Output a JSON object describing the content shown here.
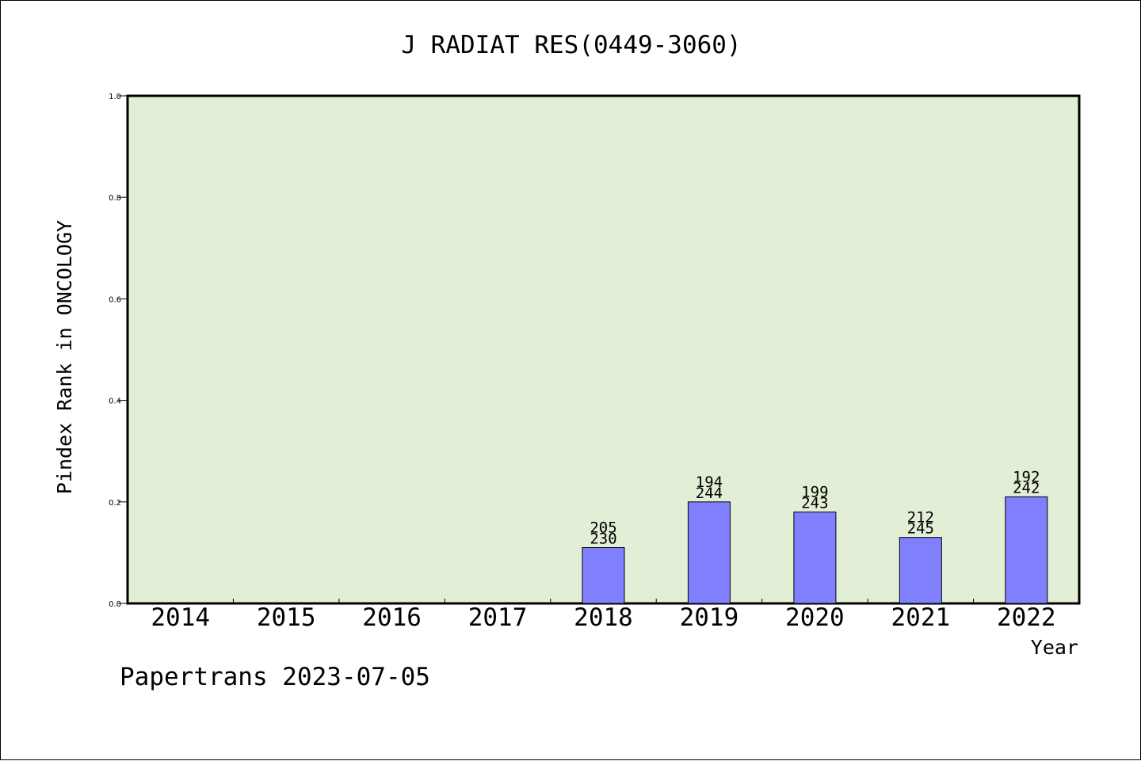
{
  "chart_data": {
    "type": "bar",
    "title": "J RADIAT RES(0449-3060)",
    "xlabel": "Year",
    "ylabel": "Pindex Rank in ONCOLOGY",
    "footer": "Papertrans 2023-07-05",
    "categories": [
      "2014",
      "2015",
      "2016",
      "2017",
      "2018",
      "2019",
      "2020",
      "2021",
      "2022"
    ],
    "values": [
      null,
      null,
      null,
      null,
      0.11,
      0.2,
      0.18,
      0.13,
      0.21
    ],
    "labels_top": [
      "",
      "",
      "",
      "",
      "205",
      "194",
      "199",
      "212",
      "192"
    ],
    "labels_bottom": [
      "",
      "",
      "",
      "",
      "230",
      "244",
      "243",
      "245",
      "242"
    ],
    "ylim": [
      0,
      1.0
    ],
    "yticks": [
      "0.0",
      "0.2",
      "0.4",
      "0.6",
      "0.8",
      "1.0"
    ],
    "grid": false,
    "colors": {
      "plot_background": "#e2efd6",
      "bar_fill": "#8080ff",
      "bar_stroke": "#000000"
    }
  }
}
